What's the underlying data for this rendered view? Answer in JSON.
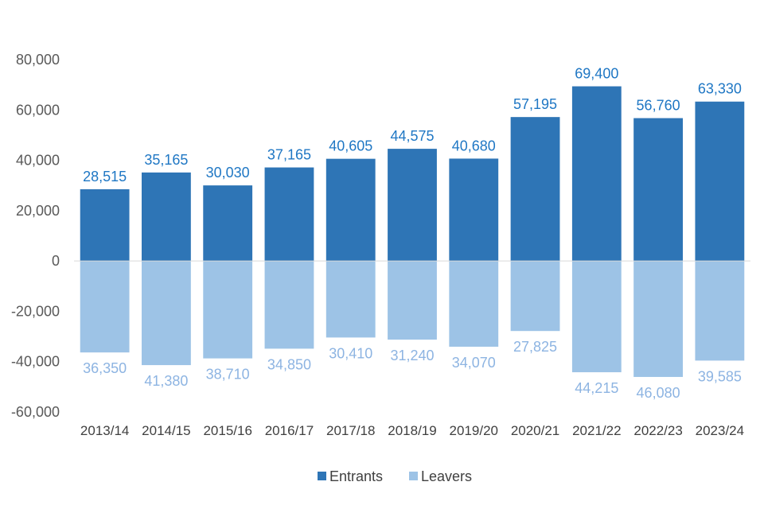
{
  "chart_data": {
    "type": "bar",
    "stacked_diverging": true,
    "categories": [
      "2013/14",
      "2014/15",
      "2015/16",
      "2016/17",
      "2017/18",
      "2018/19",
      "2019/20",
      "2020/21",
      "2021/22",
      "2022/23",
      "2023/24"
    ],
    "series": [
      {
        "name": "Entrants",
        "color": "#2E75B6",
        "label_color": "#1F77C4",
        "values": [
          28515,
          35165,
          30030,
          37165,
          40605,
          44575,
          40680,
          57195,
          69400,
          56760,
          63330
        ],
        "labels": [
          "28,515",
          "35,165",
          "30,030",
          "37,165",
          "40,605",
          "44,575",
          "40,680",
          "57,195",
          "69,400",
          "56,760",
          "63,330"
        ]
      },
      {
        "name": "Leavers",
        "color": "#9DC3E6",
        "label_color": "#8DB4E2",
        "values": [
          -36350,
          -41380,
          -38710,
          -34850,
          -30410,
          -31240,
          -34070,
          -27825,
          -44215,
          -46080,
          -39585
        ],
        "labels": [
          "36,350",
          "41,380",
          "38,710",
          "34,850",
          "30,410",
          "31,240",
          "34,070",
          "27,825",
          "44,215",
          "46,080",
          "39,585"
        ]
      }
    ],
    "ylim": [
      -60000,
      80000
    ],
    "yticks": [
      80000,
      60000,
      40000,
      20000,
      0,
      -20000,
      -40000,
      -60000
    ],
    "ytick_labels": [
      "80,000",
      "60,000",
      "40,000",
      "20,000",
      "0",
      "-20,000",
      "-40,000",
      "-60,000"
    ],
    "grid": false,
    "legend_position": "bottom",
    "title": "",
    "xlabel": "",
    "ylabel": ""
  }
}
